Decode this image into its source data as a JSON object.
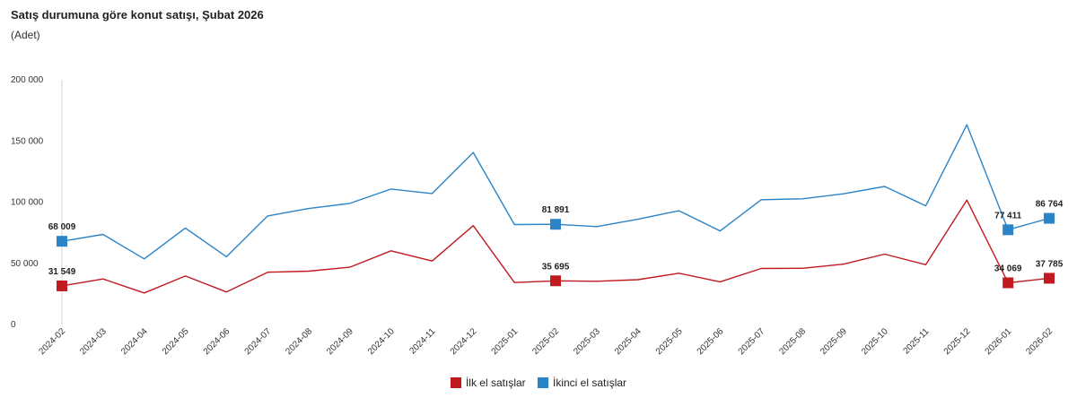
{
  "chart_data": {
    "type": "line",
    "title": "Satış durumuna göre konut satışı, Şubat 2026",
    "subtitle": "(Adet)",
    "xlabel": "",
    "ylabel": "",
    "ylim": [
      0,
      200000
    ],
    "yticks": [
      {
        "value": 0,
        "label": "0"
      },
      {
        "value": 50000,
        "label": "50 000"
      },
      {
        "value": 100000,
        "label": "100 000"
      },
      {
        "value": 150000,
        "label": "150 000"
      },
      {
        "value": 200000,
        "label": "200 000"
      }
    ],
    "grid": false,
    "legend_position": "bottom",
    "categories": [
      "2024-02",
      "2024-03",
      "2024-04",
      "2024-05",
      "2024-06",
      "2024-07",
      "2024-08",
      "2024-09",
      "2024-10",
      "2024-11",
      "2024-12",
      "2025-01",
      "2025-02",
      "2025-03",
      "2025-04",
      "2025-05",
      "2025-06",
      "2025-07",
      "2025-08",
      "2025-09",
      "2025-10",
      "2025-11",
      "2025-12",
      "2026-01",
      "2026-02"
    ],
    "series": [
      {
        "name": "İlk el satışlar",
        "color": "#c0191f",
        "values": [
          31549,
          37200,
          25800,
          39600,
          26600,
          42700,
          43600,
          46800,
          60200,
          51900,
          80800,
          34300,
          35695,
          35300,
          36600,
          41900,
          34900,
          45800,
          45900,
          49300,
          57500,
          48900,
          101700,
          34069,
          37785
        ],
        "markers": [
          {
            "index": 0,
            "label": "31 549"
          },
          {
            "index": 12,
            "label": "35 695"
          },
          {
            "index": 23,
            "label": "34 069"
          },
          {
            "index": 24,
            "label": "37 785"
          }
        ]
      },
      {
        "name": "İkinci el satışlar",
        "color": "#2b84c8",
        "values": [
          68009,
          73600,
          53600,
          78800,
          55400,
          88700,
          94800,
          99000,
          110700,
          107000,
          140600,
          81700,
          81891,
          80000,
          86000,
          93000,
          76500,
          102000,
          102700,
          106800,
          112800,
          97000,
          163200,
          77411,
          86764
        ],
        "markers": [
          {
            "index": 0,
            "label": "68 009"
          },
          {
            "index": 12,
            "label": "81 891"
          },
          {
            "index": 23,
            "label": "77 411"
          },
          {
            "index": 24,
            "label": "86 764"
          }
        ]
      }
    ]
  }
}
